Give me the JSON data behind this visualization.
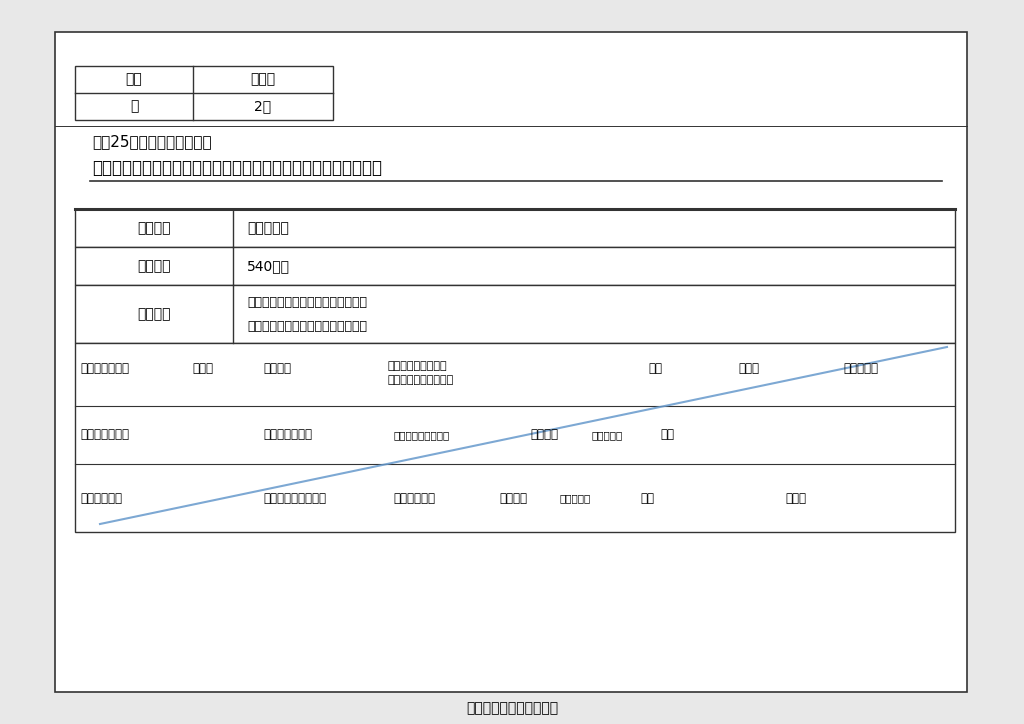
{
  "bg_color": "#e8e8e8",
  "page_bg": "#ffffff",
  "border_color": "#333333",
  "blue_line_color": "#6699cc",
  "title1": "平成25年度消通補継第１号",
  "title2": "津市消防救急デジタル無線及び高機能消防指令センター整備工事",
  "top_table_headers": [
    "前金",
    "部分払"
  ],
  "top_table_values": [
    "有",
    "2回"
  ],
  "main_table_row1_label": "工事場所",
  "main_table_row1_value": "津市内一円",
  "main_table_row2_label": "工　　期",
  "main_table_row2_value": "540日間",
  "main_table_row3_label": "工事概要",
  "main_table_row3_value1": "消防救急デジタル無線整備　　一式",
  "main_table_row3_value2": "高機能消防指令センター整備　一式",
  "row4_col0": "通信指令課決裁",
  "row4_col1": "消防長",
  "row4_col2": "消防次長",
  "row4_col3a": "情報管理担当副参事",
  "row4_col3b": "（冈）調整・担当主幹",
  "row4_col4": "担当",
  "row4_col5": "検算者",
  "row4_col6": "照査責任者",
  "row5_col0": "消防総務課決裁",
  "row5_col2": "参事（冈）課長",
  "row5_col3": "企画調整担当副参事",
  "row5_col4a": "担当主幹",
  "row5_col4b": "担当副主幹",
  "row5_col5": "担当",
  "row6_col0": "営繌課　合議",
  "row6_col2": "参事（冈）営繌課長",
  "row6_col3": "設備担当主幹",
  "row6_col4a": "担当主幹",
  "row6_col4b": "担当副主幹",
  "row6_col5": "担当",
  "row6_col6": "設計者",
  "footer": "津市消防本部通信指令課"
}
